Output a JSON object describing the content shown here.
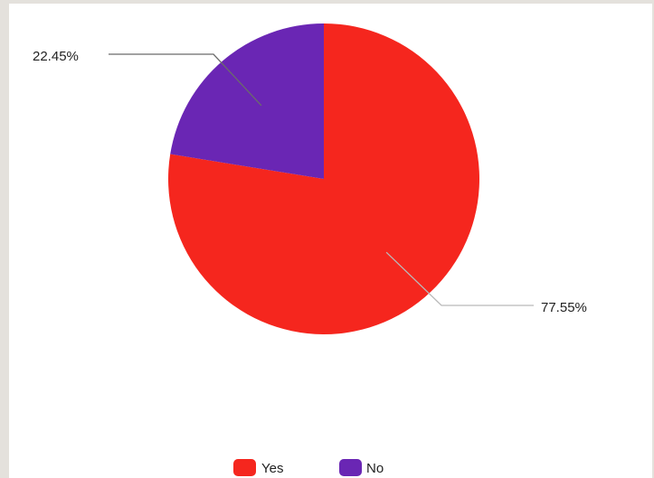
{
  "chart_data": {
    "type": "pie",
    "categories": [
      "Yes",
      "No"
    ],
    "values": [
      77.55,
      22.45
    ],
    "data_labels": [
      "77.55%",
      "22.45%"
    ],
    "colors": [
      "#f5261e",
      "#6a26b4"
    ],
    "legend": {
      "placement": "bottom",
      "entries": [
        "Yes",
        "No"
      ]
    },
    "title": "",
    "start_angle_deg": 0,
    "direction": "clockwise"
  }
}
